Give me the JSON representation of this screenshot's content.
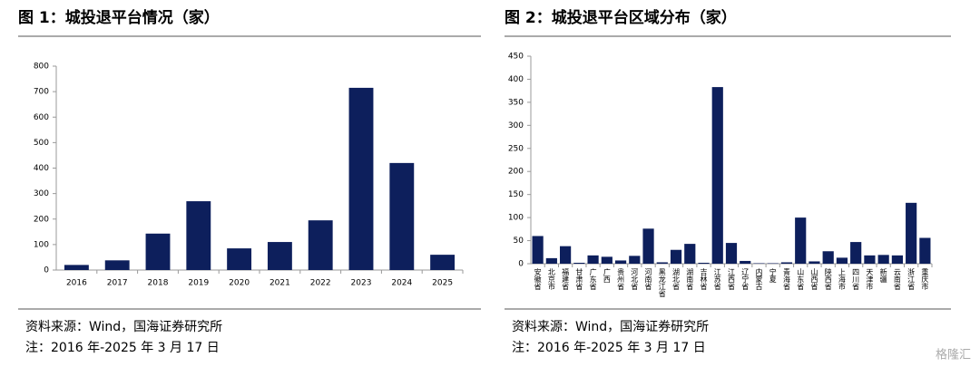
{
  "chart_data": [
    {
      "type": "bar",
      "title": "图 1：城投退平台情况（家）",
      "categories": [
        "2016",
        "2017",
        "2018",
        "2019",
        "2020",
        "2021",
        "2022",
        "2023",
        "2024",
        "2025"
      ],
      "values": [
        20,
        38,
        143,
        270,
        85,
        110,
        195,
        715,
        420,
        60
      ],
      "color": "#0d1f5c",
      "ylim": [
        0,
        800
      ],
      "yticks": [
        0,
        100,
        200,
        300,
        400,
        500,
        600,
        700,
        800
      ],
      "source": "资料来源：Wind，国海证券研究所",
      "note": "注：2016 年-2025 年 3 月 17 日"
    },
    {
      "type": "bar",
      "title": "图 2：城投退平台区域分布（家）",
      "categories": [
        "安徽省",
        "北京市",
        "福建省",
        "甘肃省",
        "广东省",
        "广西",
        "贵州省",
        "河北省",
        "河南省",
        "黑龙江省",
        "湖北省",
        "湖南省",
        "吉林省",
        "江苏省",
        "江西省",
        "辽宁省",
        "内蒙古",
        "宁夏",
        "青海省",
        "山东省",
        "山西省",
        "陕西省",
        "上海市",
        "四川省",
        "天津市",
        "新疆",
        "云南省",
        "浙江省",
        "重庆市"
      ],
      "values": [
        60,
        12,
        38,
        2,
        18,
        15,
        7,
        17,
        76,
        3,
        30,
        43,
        2,
        383,
        45,
        6,
        1,
        1,
        3,
        100,
        5,
        27,
        13,
        47,
        18,
        19,
        18,
        132,
        56
      ],
      "color": "#0d1f5c",
      "ylim": [
        0,
        450
      ],
      "yticks": [
        0,
        50,
        100,
        150,
        200,
        250,
        300,
        350,
        400,
        450
      ],
      "source": "资料来源：Wind，国海证券研究所",
      "note": "注：2016 年-2025 年 3 月 17 日"
    }
  ],
  "watermark": "格隆汇"
}
